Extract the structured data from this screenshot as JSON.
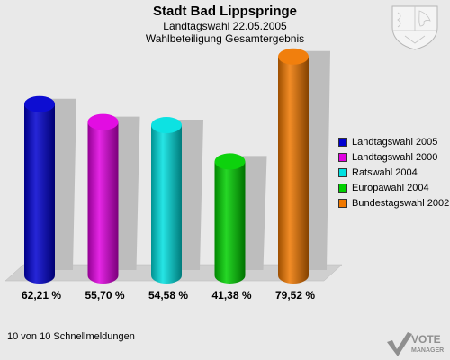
{
  "header": {
    "title": "Stadt Bad Lippspringe",
    "subtitle1": "Landtagswahl 22.05.2005",
    "subtitle2": "Wahlbeteiligung Gesamtergebnis"
  },
  "footer": {
    "text": "10 von 10 Schnellmeldungen"
  },
  "logo": {
    "line1": "VOTE",
    "line2": "MANAGER"
  },
  "chart_data": {
    "type": "bar",
    "title": "Stadt Bad Lippspringe",
    "subtitle": "Landtagswahl 22.05.2005 / Wahlbeteiligung Gesamtergebnis",
    "categories": [
      "Landtagswahl 2005",
      "Landtagswahl 2000",
      "Ratswahl 2004",
      "Europawahl 2004",
      "Bundestagswahl 2002"
    ],
    "values": [
      62.21,
      55.7,
      54.58,
      41.38,
      79.52
    ],
    "value_labels": [
      "62,21 %",
      "55,70 %",
      "54,58 %",
      "41,38 %",
      "79,52 %"
    ],
    "colors": [
      "#0000d0",
      "#e000e0",
      "#00e0e0",
      "#00d000",
      "#f07800"
    ],
    "ylim": [
      0,
      85
    ],
    "grid": false,
    "legend": "right"
  }
}
